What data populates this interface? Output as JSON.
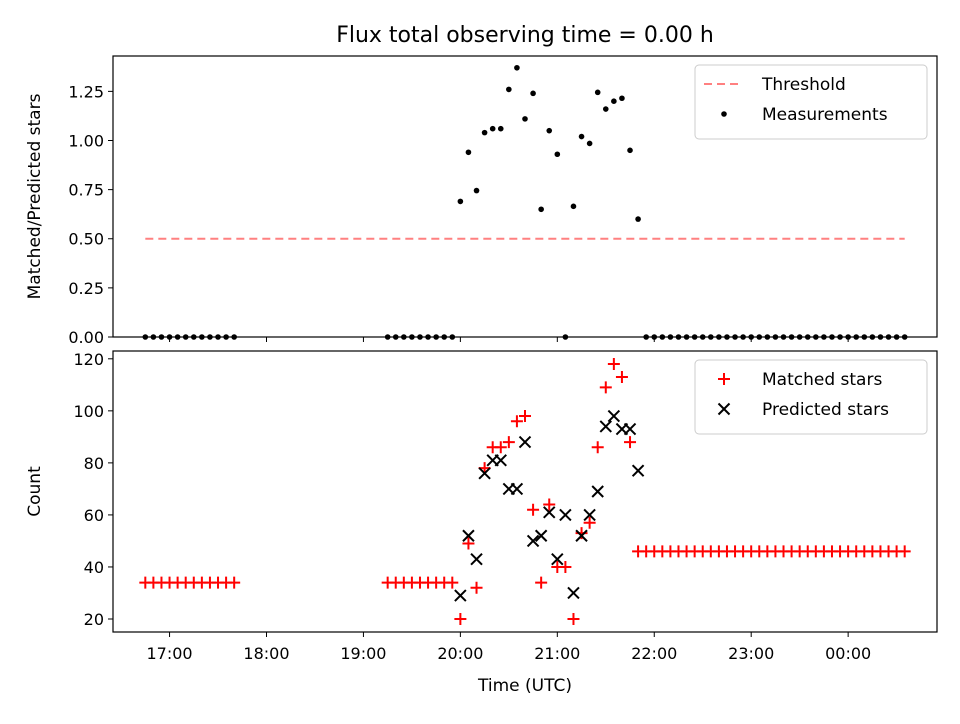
{
  "title": "Flux total observing time = 0.00 h",
  "chart_data": [
    {
      "type": "scatter",
      "ylabel": "Matched/Predicted stars",
      "x_range": [
        "16:25",
        "00:55"
      ],
      "ylim": [
        0,
        1.43
      ],
      "yticks": [
        0.0,
        0.25,
        0.5,
        0.75,
        1.0,
        1.25
      ],
      "ytick_labels": [
        "0.00",
        "0.25",
        "0.50",
        "0.75",
        "1.00",
        "1.25"
      ],
      "legend_position": "top-right",
      "threshold": {
        "name": "Threshold",
        "value": 0.5,
        "x_start": "16:45",
        "x_end": "00:35",
        "color": "#ff8080",
        "style": "dashed"
      },
      "series": [
        {
          "name": "Measurements",
          "marker": "dot",
          "color": "#000000",
          "points": [
            [
              "16:45",
              0
            ],
            [
              "16:50",
              0
            ],
            [
              "16:55",
              0
            ],
            [
              "17:00",
              0
            ],
            [
              "17:05",
              0
            ],
            [
              "17:10",
              0
            ],
            [
              "17:15",
              0
            ],
            [
              "17:20",
              0
            ],
            [
              "17:25",
              0
            ],
            [
              "17:30",
              0
            ],
            [
              "17:35",
              0
            ],
            [
              "17:40",
              0
            ],
            [
              "19:15",
              0
            ],
            [
              "19:20",
              0
            ],
            [
              "19:25",
              0
            ],
            [
              "19:30",
              0
            ],
            [
              "19:35",
              0
            ],
            [
              "19:40",
              0
            ],
            [
              "19:45",
              0
            ],
            [
              "19:50",
              0
            ],
            [
              "19:55",
              0
            ],
            [
              "20:00",
              0.69
            ],
            [
              "20:05",
              0.94
            ],
            [
              "20:10",
              0.745
            ],
            [
              "20:15",
              1.04
            ],
            [
              "20:20",
              1.06
            ],
            [
              "20:25",
              1.06
            ],
            [
              "20:30",
              1.26
            ],
            [
              "20:35",
              1.37
            ],
            [
              "20:40",
              1.11
            ],
            [
              "20:45",
              1.24
            ],
            [
              "20:50",
              0.65
            ],
            [
              "20:55",
              1.05
            ],
            [
              "21:00",
              0.93
            ],
            [
              "21:05",
              0
            ],
            [
              "21:10",
              0.665
            ],
            [
              "21:15",
              1.02
            ],
            [
              "21:20",
              0.985
            ],
            [
              "21:25",
              1.245
            ],
            [
              "21:30",
              1.16
            ],
            [
              "21:35",
              1.2
            ],
            [
              "21:40",
              1.215
            ],
            [
              "21:45",
              0.95
            ],
            [
              "21:50",
              0.6
            ],
            [
              "21:55",
              0
            ],
            [
              "22:00",
              0
            ],
            [
              "22:05",
              0
            ],
            [
              "22:10",
              0
            ],
            [
              "22:15",
              0
            ],
            [
              "22:20",
              0
            ],
            [
              "22:25",
              0
            ],
            [
              "22:30",
              0
            ],
            [
              "22:35",
              0
            ],
            [
              "22:40",
              0
            ],
            [
              "22:45",
              0
            ],
            [
              "22:50",
              0
            ],
            [
              "22:55",
              0
            ],
            [
              "23:00",
              0
            ],
            [
              "23:05",
              0
            ],
            [
              "23:10",
              0
            ],
            [
              "23:15",
              0
            ],
            [
              "23:20",
              0
            ],
            [
              "23:25",
              0
            ],
            [
              "23:30",
              0
            ],
            [
              "23:35",
              0
            ],
            [
              "23:40",
              0
            ],
            [
              "23:45",
              0
            ],
            [
              "23:50",
              0
            ],
            [
              "23:55",
              0
            ],
            [
              "00:00",
              0
            ],
            [
              "00:05",
              0
            ],
            [
              "00:10",
              0
            ],
            [
              "00:15",
              0
            ],
            [
              "00:20",
              0
            ],
            [
              "00:25",
              0
            ],
            [
              "00:30",
              0
            ],
            [
              "00:35",
              0
            ]
          ]
        }
      ]
    },
    {
      "type": "scatter",
      "xlabel": "Time (UTC)",
      "ylabel": "Count",
      "x_range": [
        "16:25",
        "00:55"
      ],
      "ylim": [
        15,
        123
      ],
      "yticks": [
        20,
        40,
        60,
        80,
        100,
        120
      ],
      "xticks": [
        "17:00",
        "18:00",
        "19:00",
        "20:00",
        "21:00",
        "22:00",
        "23:00",
        "00:00"
      ],
      "legend_position": "top-right",
      "series": [
        {
          "name": "Matched stars",
          "marker": "plus",
          "color": "#ff0000",
          "points": [
            [
              "16:45",
              34
            ],
            [
              "16:50",
              34
            ],
            [
              "16:55",
              34
            ],
            [
              "17:00",
              34
            ],
            [
              "17:05",
              34
            ],
            [
              "17:10",
              34
            ],
            [
              "17:15",
              34
            ],
            [
              "17:20",
              34
            ],
            [
              "17:25",
              34
            ],
            [
              "17:30",
              34
            ],
            [
              "17:35",
              34
            ],
            [
              "17:40",
              34
            ],
            [
              "19:15",
              34
            ],
            [
              "19:20",
              34
            ],
            [
              "19:25",
              34
            ],
            [
              "19:30",
              34
            ],
            [
              "19:35",
              34
            ],
            [
              "19:40",
              34
            ],
            [
              "19:45",
              34
            ],
            [
              "19:50",
              34
            ],
            [
              "19:55",
              34
            ],
            [
              "20:00",
              20
            ],
            [
              "20:05",
              49
            ],
            [
              "20:10",
              32
            ],
            [
              "20:15",
              78
            ],
            [
              "20:20",
              86
            ],
            [
              "20:25",
              86
            ],
            [
              "20:30",
              88
            ],
            [
              "20:35",
              96
            ],
            [
              "20:40",
              98
            ],
            [
              "20:45",
              62
            ],
            [
              "20:50",
              34
            ],
            [
              "20:55",
              64
            ],
            [
              "21:00",
              40
            ],
            [
              "21:05",
              40
            ],
            [
              "21:10",
              20
            ],
            [
              "21:15",
              53
            ],
            [
              "21:20",
              57
            ],
            [
              "21:25",
              86
            ],
            [
              "21:30",
              109
            ],
            [
              "21:35",
              118
            ],
            [
              "21:40",
              113
            ],
            [
              "21:45",
              88
            ],
            [
              "21:50",
              46
            ],
            [
              "21:55",
              46
            ],
            [
              "22:00",
              46
            ],
            [
              "22:05",
              46
            ],
            [
              "22:10",
              46
            ],
            [
              "22:15",
              46
            ],
            [
              "22:20",
              46
            ],
            [
              "22:25",
              46
            ],
            [
              "22:30",
              46
            ],
            [
              "22:35",
              46
            ],
            [
              "22:40",
              46
            ],
            [
              "22:45",
              46
            ],
            [
              "22:50",
              46
            ],
            [
              "22:55",
              46
            ],
            [
              "23:00",
              46
            ],
            [
              "23:05",
              46
            ],
            [
              "23:10",
              46
            ],
            [
              "23:15",
              46
            ],
            [
              "23:20",
              46
            ],
            [
              "23:25",
              46
            ],
            [
              "23:30",
              46
            ],
            [
              "23:35",
              46
            ],
            [
              "23:40",
              46
            ],
            [
              "23:45",
              46
            ],
            [
              "23:50",
              46
            ],
            [
              "23:55",
              46
            ],
            [
              "00:00",
              46
            ],
            [
              "00:05",
              46
            ],
            [
              "00:10",
              46
            ],
            [
              "00:15",
              46
            ],
            [
              "00:20",
              46
            ],
            [
              "00:25",
              46
            ],
            [
              "00:30",
              46
            ],
            [
              "00:35",
              46
            ]
          ]
        },
        {
          "name": "Predicted stars",
          "marker": "x",
          "color": "#000000",
          "points": [
            [
              "20:00",
              29
            ],
            [
              "20:05",
              52
            ],
            [
              "20:10",
              43
            ],
            [
              "20:15",
              76
            ],
            [
              "20:20",
              81
            ],
            [
              "20:25",
              81
            ],
            [
              "20:30",
              70
            ],
            [
              "20:35",
              70
            ],
            [
              "20:40",
              88
            ],
            [
              "20:45",
              50
            ],
            [
              "20:50",
              52
            ],
            [
              "20:55",
              61
            ],
            [
              "21:00",
              43
            ],
            [
              "21:05",
              60
            ],
            [
              "21:10",
              30
            ],
            [
              "21:15",
              52
            ],
            [
              "21:20",
              60
            ],
            [
              "21:25",
              69
            ],
            [
              "21:30",
              94
            ],
            [
              "21:35",
              98
            ],
            [
              "21:40",
              93
            ],
            [
              "21:45",
              93
            ],
            [
              "21:50",
              77
            ]
          ]
        }
      ]
    }
  ]
}
